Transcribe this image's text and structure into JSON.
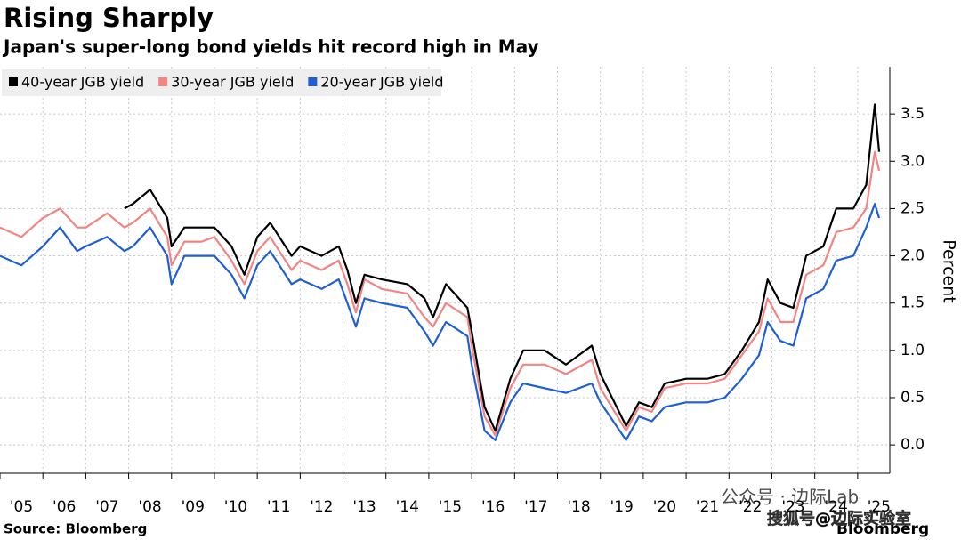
{
  "chart_data": {
    "type": "line",
    "title": "Rising Sharply",
    "subtitle": "Japan's super-long bond yields hit record high in May",
    "y_axis_label": "Percent",
    "source": "Source: Bloomberg",
    "logo": "Bloomberg",
    "watermarks": [
      "公众号 · 边际Lab",
      "搜狐号@边际实验室"
    ],
    "x": [
      2005.0,
      2005.5,
      2006.0,
      2006.4,
      2006.8,
      2007.0,
      2007.5,
      2007.9,
      2008.1,
      2008.5,
      2008.9,
      2009.0,
      2009.3,
      2009.7,
      2010.0,
      2010.4,
      2010.7,
      2011.0,
      2011.3,
      2011.8,
      2012.0,
      2012.5,
      2012.9,
      2013.1,
      2013.3,
      2013.5,
      2013.9,
      2014.5,
      2014.9,
      2015.1,
      2015.4,
      2015.9,
      2016.0,
      2016.3,
      2016.55,
      2016.9,
      2017.2,
      2017.7,
      2018.2,
      2018.8,
      2019.0,
      2019.6,
      2019.9,
      2020.2,
      2020.5,
      2021.0,
      2021.5,
      2021.9,
      2022.3,
      2022.7,
      2022.9,
      2023.2,
      2023.5,
      2023.8,
      2024.2,
      2024.5,
      2024.9,
      2025.2,
      2025.4,
      2025.5
    ],
    "series": [
      {
        "name": "40-year JGB yield",
        "color": "#000000",
        "values": [
          null,
          null,
          null,
          null,
          null,
          null,
          null,
          2.5,
          2.55,
          2.7,
          2.4,
          2.1,
          2.3,
          2.3,
          2.3,
          2.1,
          1.8,
          2.2,
          2.35,
          2.0,
          2.1,
          2.0,
          2.1,
          1.85,
          1.5,
          1.8,
          1.75,
          1.7,
          1.55,
          1.35,
          1.7,
          1.45,
          1.2,
          0.4,
          0.15,
          0.7,
          1.0,
          1.0,
          0.85,
          1.05,
          0.75,
          0.2,
          0.45,
          0.4,
          0.65,
          0.7,
          0.7,
          0.75,
          1.0,
          1.3,
          1.75,
          1.5,
          1.45,
          2.0,
          2.1,
          2.5,
          2.5,
          2.75,
          3.6,
          3.1
        ]
      },
      {
        "name": "30-year JGB yield",
        "color": "#f28482",
        "values": [
          2.3,
          2.2,
          2.4,
          2.5,
          2.3,
          2.3,
          2.45,
          2.3,
          2.35,
          2.5,
          2.2,
          1.9,
          2.15,
          2.15,
          2.2,
          1.95,
          1.7,
          2.05,
          2.2,
          1.85,
          1.95,
          1.85,
          1.95,
          1.7,
          1.4,
          1.75,
          1.65,
          1.6,
          1.35,
          1.25,
          1.5,
          1.35,
          1.05,
          0.3,
          0.1,
          0.6,
          0.85,
          0.85,
          0.75,
          0.9,
          0.6,
          0.15,
          0.4,
          0.35,
          0.6,
          0.65,
          0.65,
          0.7,
          0.95,
          1.2,
          1.55,
          1.3,
          1.3,
          1.8,
          1.9,
          2.25,
          2.3,
          2.5,
          3.1,
          2.9
        ]
      },
      {
        "name": "20-year JGB yield",
        "color": "#1f5fd6",
        "values": [
          2.0,
          1.9,
          2.1,
          2.3,
          2.05,
          2.1,
          2.2,
          2.05,
          2.1,
          2.3,
          2.0,
          1.7,
          2.0,
          2.0,
          2.0,
          1.8,
          1.55,
          1.9,
          2.05,
          1.7,
          1.75,
          1.65,
          1.75,
          1.5,
          1.25,
          1.55,
          1.5,
          1.45,
          1.2,
          1.05,
          1.3,
          1.15,
          0.85,
          0.15,
          0.05,
          0.45,
          0.65,
          0.6,
          0.55,
          0.65,
          0.45,
          0.05,
          0.3,
          0.25,
          0.4,
          0.45,
          0.45,
          0.5,
          0.7,
          0.95,
          1.3,
          1.1,
          1.05,
          1.55,
          1.65,
          1.95,
          2.0,
          2.3,
          2.55,
          2.4
        ]
      }
    ],
    "xlim": [
      2005,
      2025.75
    ],
    "xticks": [
      {
        "value": 2005,
        "label": "'05"
      },
      {
        "value": 2006,
        "label": "'06"
      },
      {
        "value": 2007,
        "label": "'07"
      },
      {
        "value": 2008,
        "label": "'08"
      },
      {
        "value": 2009,
        "label": "'09"
      },
      {
        "value": 2010,
        "label": "'10"
      },
      {
        "value": 2011,
        "label": "'11"
      },
      {
        "value": 2012,
        "label": "'12"
      },
      {
        "value": 2013,
        "label": "'13"
      },
      {
        "value": 2014,
        "label": "'14"
      },
      {
        "value": 2015,
        "label": "'15"
      },
      {
        "value": 2016,
        "label": "'16"
      },
      {
        "value": 2017,
        "label": "'17"
      },
      {
        "value": 2018,
        "label": "'18"
      },
      {
        "value": 2019,
        "label": "'19"
      },
      {
        "value": 2020,
        "label": "'20"
      },
      {
        "value": 2021,
        "label": "'21"
      },
      {
        "value": 2022,
        "label": "'22"
      },
      {
        "value": 2023,
        "label": "'23"
      },
      {
        "value": 2024,
        "label": "'24"
      },
      {
        "value": 2025,
        "label": "'25"
      }
    ],
    "ylim": [
      -0.3,
      4.0
    ],
    "yticks": [
      {
        "value": 0,
        "label": "0.0"
      },
      0.5,
      {
        "value": 1,
        "label": "1.0"
      },
      1.5,
      {
        "value": 2,
        "label": "2.0"
      },
      2.5,
      {
        "value": 3,
        "label": "3.0"
      },
      3.5
    ],
    "grid": true,
    "legend": "top-left"
  }
}
